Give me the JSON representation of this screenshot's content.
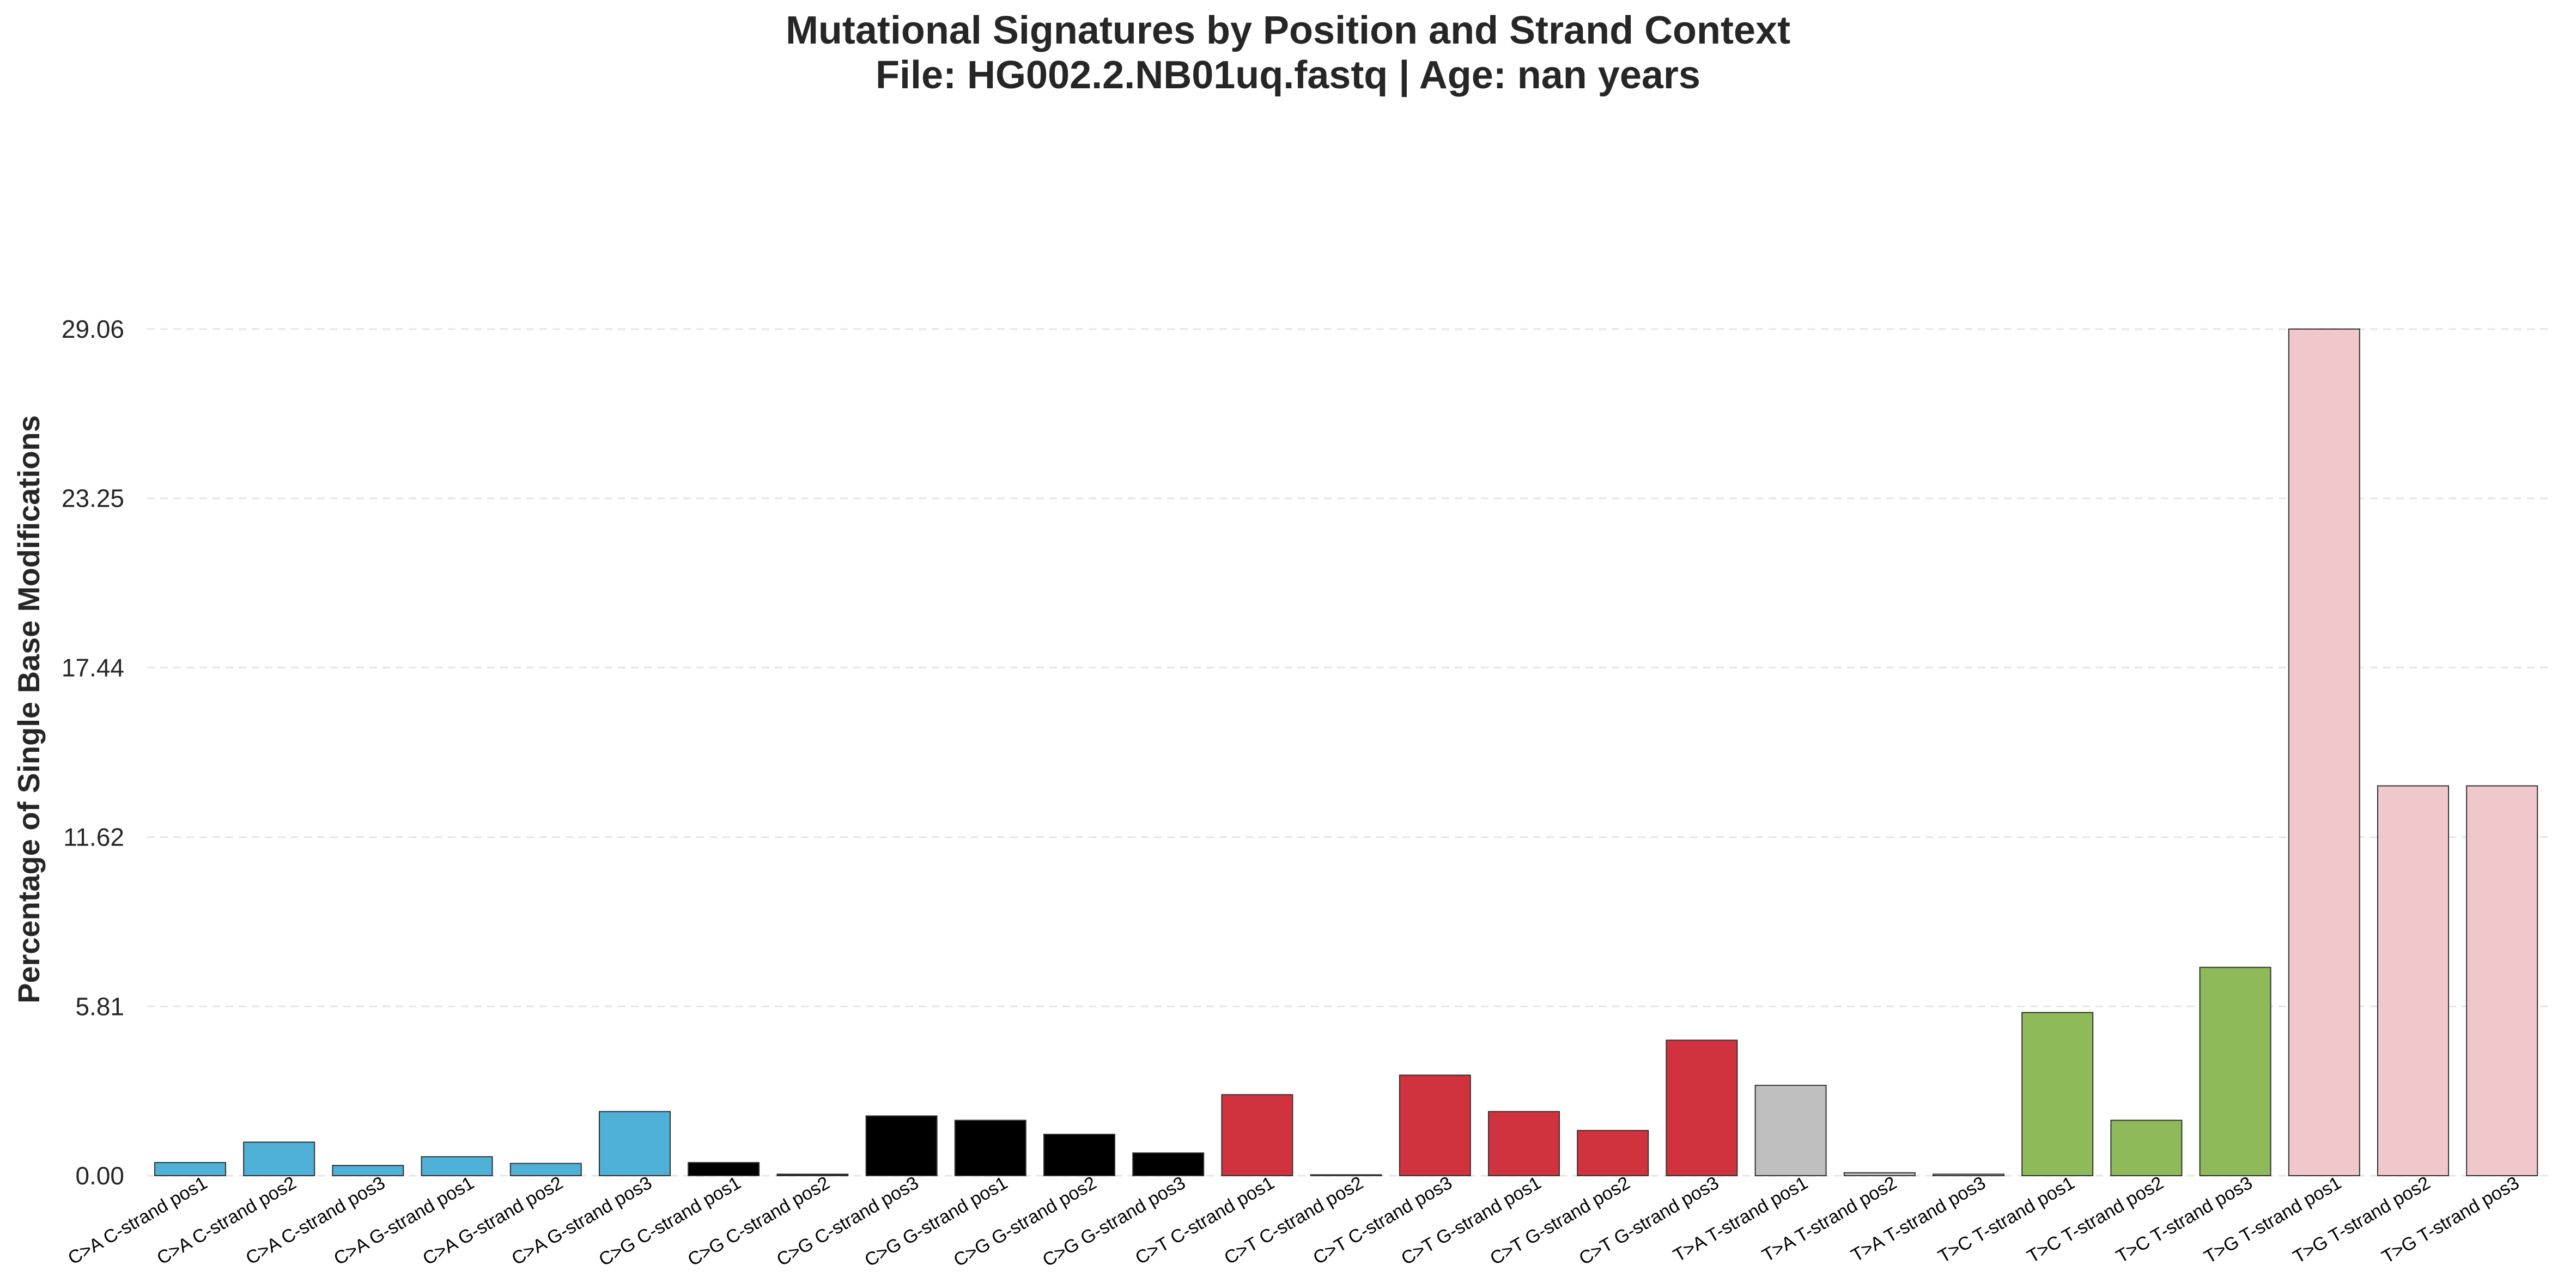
{
  "chart_data": {
    "type": "bar",
    "title": "Mutational Signatures by Position and Strand Context",
    "subtitle": "File: HG002.2.NB01uq.fastq | Age: nan years",
    "xlabel": "",
    "ylabel": "Percentage of Single Base Modifications",
    "ylim": [
      0,
      29.06
    ],
    "yticks": [
      "0.00",
      "5.81",
      "11.62",
      "17.44",
      "23.25",
      "29.06"
    ],
    "grid": "horizontal-dashed",
    "categories": [
      "C>A C-strand pos1",
      "C>A C-strand pos2",
      "C>A C-strand pos3",
      "C>A G-strand pos1",
      "C>A G-strand pos2",
      "C>A G-strand pos3",
      "C>G C-strand pos1",
      "C>G C-strand pos2",
      "C>G C-strand pos3",
      "C>G G-strand pos1",
      "C>G G-strand pos2",
      "C>G G-strand pos3",
      "C>T C-strand pos1",
      "C>T C-strand pos2",
      "C>T C-strand pos3",
      "C>T G-strand pos1",
      "C>T G-strand pos2",
      "C>T G-strand pos3",
      "T>A T-strand pos1",
      "T>A T-strand pos2",
      "T>A T-strand pos3",
      "T>C T-strand pos1",
      "T>C T-strand pos2",
      "T>C T-strand pos3",
      "T>G T-strand pos1",
      "T>G T-strand pos2",
      "T>G T-strand pos3"
    ],
    "values": [
      0.45,
      1.15,
      0.35,
      0.65,
      0.42,
      2.2,
      0.45,
      0.05,
      2.05,
      1.9,
      1.42,
      0.78,
      2.78,
      0.03,
      3.45,
      2.2,
      1.55,
      4.65,
      3.1,
      0.1,
      0.05,
      5.6,
      1.9,
      7.15,
      29.06,
      13.38,
      13.38
    ],
    "colors": [
      "#4fb0d8",
      "#4fb0d8",
      "#4fb0d8",
      "#4fb0d8",
      "#4fb0d8",
      "#4fb0d8",
      "#000000",
      "#000000",
      "#000000",
      "#000000",
      "#000000",
      "#000000",
      "#d0333d",
      "#d0333d",
      "#d0333d",
      "#d0333d",
      "#d0333d",
      "#d0333d",
      "#bfbfbf",
      "#bfbfbf",
      "#bfbfbf",
      "#8fba59",
      "#8fba59",
      "#8fba59",
      "#f0c8cb",
      "#f0c8cb",
      "#f0c8cb"
    ],
    "edge_color": "#333333",
    "grid_color": "#e6e6e6"
  }
}
